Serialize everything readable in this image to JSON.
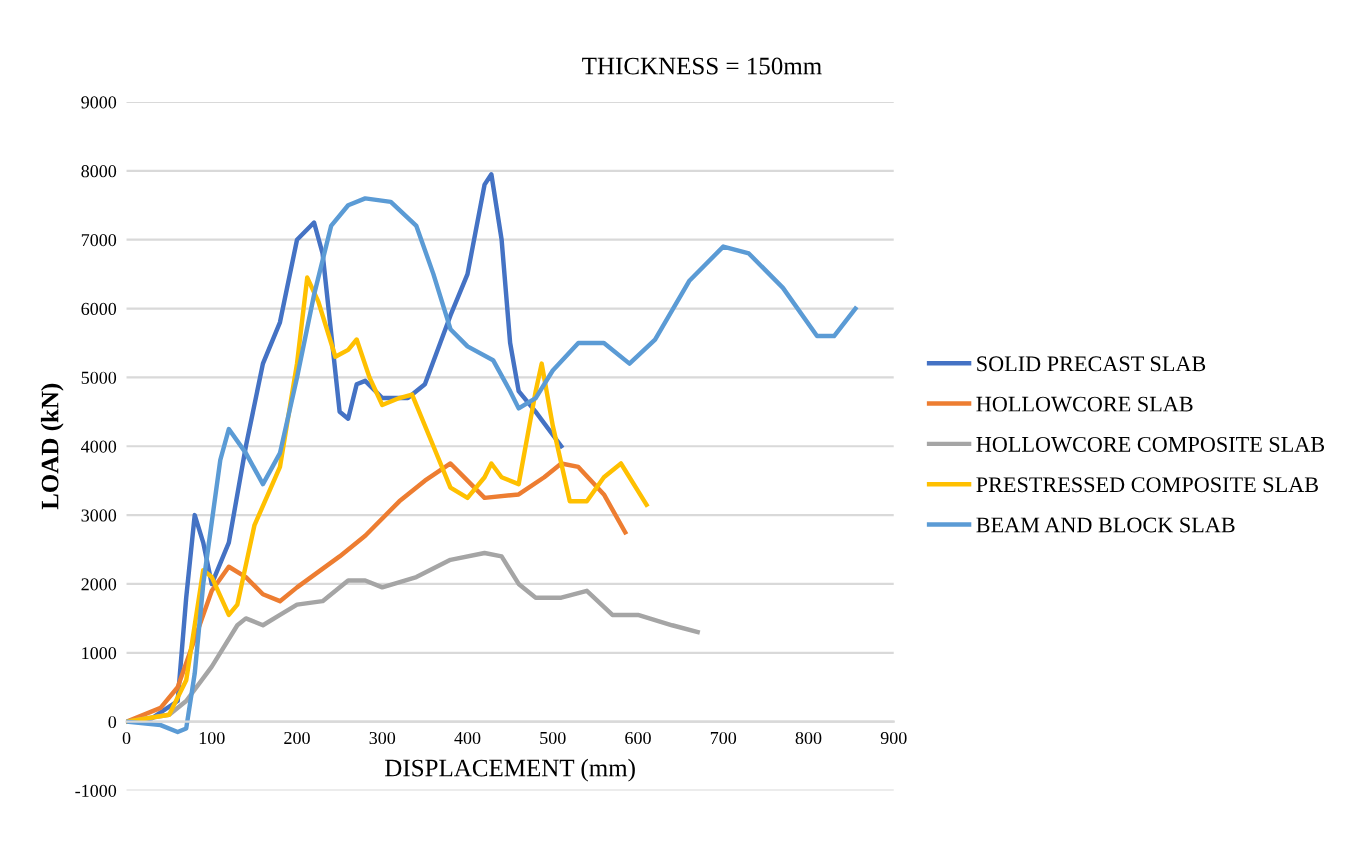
{
  "chart_data": {
    "type": "line",
    "title": "THICKNESS = 150mm",
    "xlabel": "DISPLACEMENT (mm)",
    "ylabel": "LOAD (kN)",
    "xlim": [
      0,
      900
    ],
    "xticks": [
      0,
      100,
      200,
      300,
      400,
      500,
      600,
      700,
      800,
      900
    ],
    "ylim": [
      -1000,
      9000
    ],
    "yticks": [
      -1000,
      0,
      1000,
      2000,
      3000,
      4000,
      5000,
      6000,
      7000,
      8000,
      9000
    ],
    "grid": "y",
    "legend": "right",
    "marker": "none",
    "line_style": "solid",
    "series": [
      {
        "name": "SOLID PRECAST SLAB",
        "color": "#4472c4",
        "x": [
          0,
          30,
          60,
          70,
          80,
          90,
          100,
          120,
          140,
          160,
          180,
          200,
          220,
          230,
          250,
          260,
          270,
          280,
          300,
          330,
          350,
          380,
          400,
          420,
          428,
          440,
          450,
          460,
          480,
          510
        ],
        "values": [
          0,
          50,
          300,
          1800,
          3000,
          2600,
          2000,
          2600,
          4000,
          5200,
          5800,
          7000,
          7250,
          6800,
          4500,
          4400,
          4900,
          4950,
          4700,
          4700,
          4900,
          5900,
          6500,
          7800,
          7950,
          7000,
          5500,
          4800,
          4500,
          4000
        ]
      },
      {
        "name": "HOLLOWCORE SLAB",
        "color": "#ed7d31",
        "x": [
          0,
          40,
          60,
          80,
          100,
          120,
          140,
          160,
          180,
          200,
          250,
          280,
          320,
          350,
          380,
          400,
          420,
          460,
          490,
          510,
          530,
          560,
          585
        ],
        "values": [
          0,
          200,
          500,
          1200,
          1900,
          2250,
          2100,
          1850,
          1750,
          1950,
          2400,
          2700,
          3200,
          3500,
          3750,
          3500,
          3250,
          3300,
          3550,
          3750,
          3700,
          3300,
          2750
        ]
      },
      {
        "name": "HOLLOWCORE COMPOSITE SLAB",
        "color": "#a5a5a5",
        "x": [
          0,
          50,
          70,
          100,
          130,
          140,
          160,
          180,
          200,
          230,
          260,
          280,
          300,
          340,
          380,
          420,
          440,
          460,
          480,
          510,
          540,
          570,
          600,
          640,
          670
        ],
        "values": [
          0,
          100,
          300,
          800,
          1400,
          1500,
          1400,
          1550,
          1700,
          1750,
          2050,
          2050,
          1950,
          2100,
          2350,
          2450,
          2400,
          2000,
          1800,
          1800,
          1900,
          1550,
          1550,
          1400,
          1300
        ]
      },
      {
        "name": "PRESTRESSED COMPOSITE SLAB",
        "color": "#ffc000",
        "x": [
          0,
          50,
          70,
          90,
          100,
          120,
          130,
          150,
          180,
          200,
          212,
          225,
          245,
          260,
          270,
          285,
          300,
          320,
          335,
          360,
          380,
          400,
          420,
          428,
          440,
          460,
          480,
          487,
          500,
          520,
          540,
          560,
          580,
          610
        ],
        "values": [
          0,
          100,
          600,
          2200,
          2100,
          1550,
          1700,
          2850,
          3700,
          5200,
          6450,
          6100,
          5300,
          5400,
          5550,
          5000,
          4600,
          4700,
          4750,
          4000,
          3400,
          3250,
          3550,
          3750,
          3550,
          3450,
          4800,
          5200,
          4300,
          3200,
          3200,
          3550,
          3750,
          3150
        ]
      },
      {
        "name": "BEAM AND BLOCK SLAB",
        "color": "#5b9bd5",
        "x": [
          0,
          40,
          60,
          70,
          80,
          90,
          110,
          120,
          140,
          160,
          180,
          200,
          220,
          240,
          260,
          280,
          310,
          340,
          360,
          380,
          400,
          430,
          450,
          460,
          480,
          500,
          530,
          560,
          590,
          620,
          660,
          700,
          730,
          770,
          810,
          830,
          855
        ],
        "values": [
          0,
          -50,
          -150,
          -100,
          700,
          2000,
          3800,
          4250,
          3900,
          3450,
          3900,
          5000,
          6200,
          7200,
          7500,
          7600,
          7550,
          7200,
          6500,
          5700,
          5450,
          5250,
          4800,
          4550,
          4700,
          5100,
          5500,
          5500,
          5200,
          5550,
          6400,
          6900,
          6800,
          6300,
          5600,
          5600,
          6000
        ]
      }
    ]
  }
}
